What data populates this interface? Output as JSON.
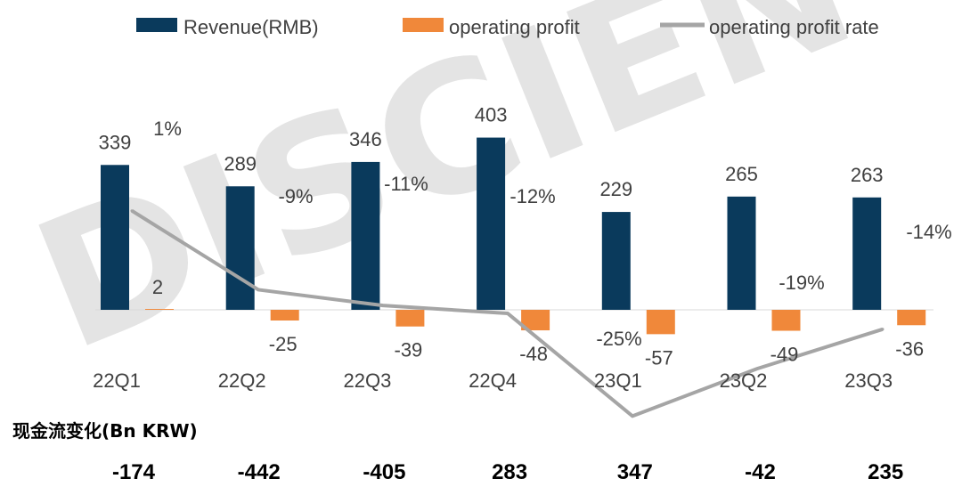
{
  "chart_data": {
    "type": "bar",
    "categories": [
      "22Q1",
      "22Q2",
      "22Q3",
      "22Q4",
      "23Q1",
      "23Q2",
      "23Q3"
    ],
    "series": [
      {
        "name": "Revenue(RMB)",
        "type": "bar",
        "color": "#0a3a5c",
        "values": [
          339,
          289,
          346,
          403,
          229,
          265,
          263
        ],
        "labels": [
          "339",
          "289",
          "346",
          "403",
          "229",
          "265",
          "263"
        ]
      },
      {
        "name": "operating profit",
        "type": "bar",
        "color": "#f0883a",
        "values": [
          2,
          -25,
          -39,
          -48,
          -57,
          -49,
          -36
        ],
        "labels": [
          "2",
          "-25",
          "-39",
          "-48",
          "-57",
          "-49",
          "-36"
        ]
      },
      {
        "name": "operating profit rate",
        "type": "line",
        "color": "#a5a5a5",
        "values": [
          1,
          -9,
          -11,
          -12,
          -25,
          -19,
          -14
        ],
        "labels": [
          "1%",
          "-9%",
          "-11%",
          "-12%",
          "-25%",
          "-19%",
          "-14%"
        ]
      }
    ],
    "legend_position": "top",
    "grid": false
  },
  "cash_flow": {
    "title": "现金流变化(Bn KRW)",
    "values": [
      "-174",
      "-442",
      "-405",
      "283",
      "347",
      "-42",
      "235"
    ]
  },
  "watermark": "DISCIEN"
}
